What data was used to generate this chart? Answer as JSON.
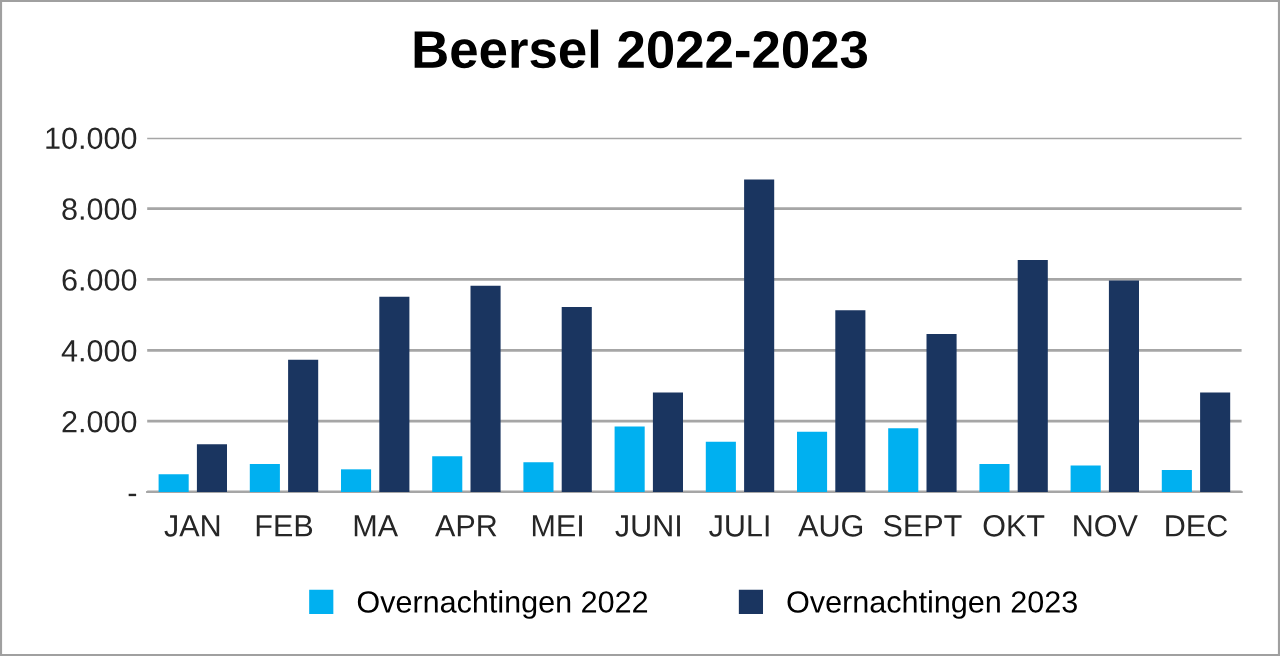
{
  "chart_data": {
    "type": "bar",
    "title": "Beersel 2022-2023",
    "categories": [
      "JAN",
      "FEB",
      "MA",
      "APR",
      "MEI",
      "JUNI",
      "JULI",
      "AUG",
      "SEPT",
      "OKT",
      "NOV",
      "DEC"
    ],
    "series": [
      {
        "name": "Overnachtingen 2022",
        "color": "#00b0f0",
        "values": [
          500,
          790,
          640,
          1010,
          840,
          1850,
          1420,
          1700,
          1800,
          790,
          750,
          620
        ]
      },
      {
        "name": "Overnachtingen 2023",
        "color": "#1a3560",
        "values": [
          1350,
          3730,
          5510,
          5820,
          5220,
          2810,
          8820,
          5130,
          4460,
          6550,
          5970,
          2810
        ]
      }
    ],
    "ylim": [
      0,
      10000
    ],
    "yticks": [
      {
        "value": 0,
        "label": "-"
      },
      {
        "value": 2000,
        "label": "2.000"
      },
      {
        "value": 4000,
        "label": "4.000"
      },
      {
        "value": 6000,
        "label": "6.000"
      },
      {
        "value": 8000,
        "label": "8.000"
      },
      {
        "value": 10000,
        "label": "10.000"
      }
    ],
    "grid": "y",
    "legend": "bottom"
  }
}
